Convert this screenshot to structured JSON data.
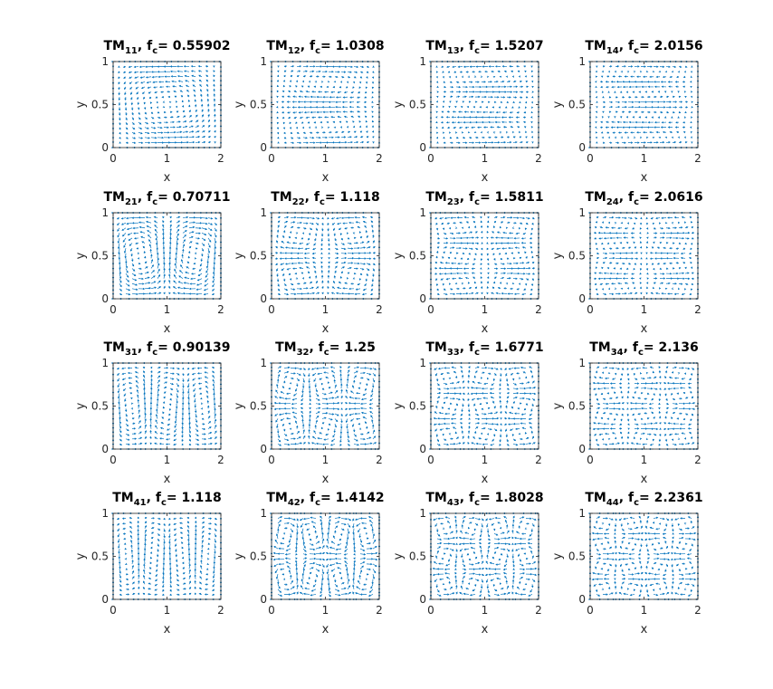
{
  "chart_data": [
    {
      "type": "quiver",
      "title": {
        "mode": "TM",
        "mode_sub": "11",
        "f": ", f",
        "f_sub": "c",
        "fc": "= 0.55902"
      },
      "xlabel": "x",
      "ylabel": "y",
      "xlim": [
        0,
        2
      ],
      "ylim": [
        0,
        1
      ],
      "xticks": [
        0,
        1,
        2
      ],
      "yticks": [
        0,
        0.5,
        1
      ],
      "color": "#0072bd"
    },
    {
      "type": "quiver",
      "title": {
        "mode": "TM",
        "mode_sub": "12",
        "f": ", f",
        "f_sub": "c",
        "fc": "= 1.0308"
      },
      "xlabel": "x",
      "ylabel": "y",
      "xlim": [
        0,
        2
      ],
      "ylim": [
        0,
        1
      ],
      "xticks": [
        0,
        1,
        2
      ],
      "yticks": [
        0,
        0.5,
        1
      ],
      "color": "#0072bd"
    },
    {
      "type": "quiver",
      "title": {
        "mode": "TM",
        "mode_sub": "13",
        "f": ", f",
        "f_sub": "c",
        "fc": "= 1.5207"
      },
      "xlabel": "x",
      "ylabel": "y",
      "xlim": [
        0,
        2
      ],
      "ylim": [
        0,
        1
      ],
      "xticks": [
        0,
        1,
        2
      ],
      "yticks": [
        0,
        0.5,
        1
      ],
      "color": "#0072bd"
    },
    {
      "type": "quiver",
      "title": {
        "mode": "TM",
        "mode_sub": "14",
        "f": ", f",
        "f_sub": "c",
        "fc": "= 2.0156"
      },
      "xlabel": "x",
      "ylabel": "y",
      "xlim": [
        0,
        2
      ],
      "ylim": [
        0,
        1
      ],
      "xticks": [
        0,
        1,
        2
      ],
      "yticks": [
        0,
        0.5,
        1
      ],
      "color": "#0072bd"
    },
    {
      "type": "quiver",
      "title": {
        "mode": "TM",
        "mode_sub": "21",
        "f": ", f",
        "f_sub": "c",
        "fc": "= 0.70711"
      },
      "xlabel": "x",
      "ylabel": "y",
      "xlim": [
        0,
        2
      ],
      "ylim": [
        0,
        1
      ],
      "xticks": [
        0,
        1,
        2
      ],
      "yticks": [
        0,
        0.5,
        1
      ],
      "color": "#0072bd"
    },
    {
      "type": "quiver",
      "title": {
        "mode": "TM",
        "mode_sub": "22",
        "f": ", f",
        "f_sub": "c",
        "fc": "= 1.118"
      },
      "xlabel": "x",
      "ylabel": "y",
      "xlim": [
        0,
        2
      ],
      "ylim": [
        0,
        1
      ],
      "xticks": [
        0,
        1,
        2
      ],
      "yticks": [
        0,
        0.5,
        1
      ],
      "color": "#0072bd"
    },
    {
      "type": "quiver",
      "title": {
        "mode": "TM",
        "mode_sub": "23",
        "f": ", f",
        "f_sub": "c",
        "fc": "= 1.5811"
      },
      "xlabel": "x",
      "ylabel": "y",
      "xlim": [
        0,
        2
      ],
      "ylim": [
        0,
        1
      ],
      "xticks": [
        0,
        1,
        2
      ],
      "yticks": [
        0,
        0.5,
        1
      ],
      "color": "#0072bd"
    },
    {
      "type": "quiver",
      "title": {
        "mode": "TM",
        "mode_sub": "24",
        "f": ", f",
        "f_sub": "c",
        "fc": "= 2.0616"
      },
      "xlabel": "x",
      "ylabel": "y",
      "xlim": [
        0,
        2
      ],
      "ylim": [
        0,
        1
      ],
      "xticks": [
        0,
        1,
        2
      ],
      "yticks": [
        0,
        0.5,
        1
      ],
      "color": "#0072bd"
    },
    {
      "type": "quiver",
      "title": {
        "mode": "TM",
        "mode_sub": "31",
        "f": ", f",
        "f_sub": "c",
        "fc": "= 0.90139"
      },
      "xlabel": "x",
      "ylabel": "y",
      "xlim": [
        0,
        2
      ],
      "ylim": [
        0,
        1
      ],
      "xticks": [
        0,
        1,
        2
      ],
      "yticks": [
        0,
        0.5,
        1
      ],
      "color": "#0072bd"
    },
    {
      "type": "quiver",
      "title": {
        "mode": "TM",
        "mode_sub": "32",
        "f": ", f",
        "f_sub": "c",
        "fc": "= 1.25"
      },
      "xlabel": "x",
      "ylabel": "y",
      "xlim": [
        0,
        2
      ],
      "ylim": [
        0,
        1
      ],
      "xticks": [
        0,
        1,
        2
      ],
      "yticks": [
        0,
        0.5,
        1
      ],
      "color": "#0072bd"
    },
    {
      "type": "quiver",
      "title": {
        "mode": "TM",
        "mode_sub": "33",
        "f": ", f",
        "f_sub": "c",
        "fc": "= 1.6771"
      },
      "xlabel": "x",
      "ylabel": "y",
      "xlim": [
        0,
        2
      ],
      "ylim": [
        0,
        1
      ],
      "xticks": [
        0,
        1,
        2
      ],
      "yticks": [
        0,
        0.5,
        1
      ],
      "color": "#0072bd"
    },
    {
      "type": "quiver",
      "title": {
        "mode": "TM",
        "mode_sub": "34",
        "f": ", f",
        "f_sub": "c",
        "fc": "= 2.136"
      },
      "xlabel": "x",
      "ylabel": "y",
      "xlim": [
        0,
        2
      ],
      "ylim": [
        0,
        1
      ],
      "xticks": [
        0,
        1,
        2
      ],
      "yticks": [
        0,
        0.5,
        1
      ],
      "color": "#0072bd"
    },
    {
      "type": "quiver",
      "title": {
        "mode": "TM",
        "mode_sub": "41",
        "f": ", f",
        "f_sub": "c",
        "fc": "= 1.118"
      },
      "xlabel": "x",
      "ylabel": "y",
      "xlim": [
        0,
        2
      ],
      "ylim": [
        0,
        1
      ],
      "xticks": [
        0,
        1,
        2
      ],
      "yticks": [
        0,
        0.5,
        1
      ],
      "color": "#0072bd"
    },
    {
      "type": "quiver",
      "title": {
        "mode": "TM",
        "mode_sub": "42",
        "f": ", f",
        "f_sub": "c",
        "fc": "= 1.4142"
      },
      "xlabel": "x",
      "ylabel": "y",
      "xlim": [
        0,
        2
      ],
      "ylim": [
        0,
        1
      ],
      "xticks": [
        0,
        1,
        2
      ],
      "yticks": [
        0,
        0.5,
        1
      ],
      "color": "#0072bd"
    },
    {
      "type": "quiver",
      "title": {
        "mode": "TM",
        "mode_sub": "43",
        "f": ", f",
        "f_sub": "c",
        "fc": "= 1.8028"
      },
      "xlabel": "x",
      "ylabel": "y",
      "xlim": [
        0,
        2
      ],
      "ylim": [
        0,
        1
      ],
      "xticks": [
        0,
        1,
        2
      ],
      "yticks": [
        0,
        0.5,
        1
      ],
      "color": "#0072bd"
    },
    {
      "type": "quiver",
      "title": {
        "mode": "TM",
        "mode_sub": "44",
        "f": ", f",
        "f_sub": "c",
        "fc": "= 2.2361"
      },
      "xlabel": "x",
      "ylabel": "y",
      "xlim": [
        0,
        2
      ],
      "ylim": [
        0,
        1
      ],
      "xticks": [
        0,
        1,
        2
      ],
      "yticks": [
        0,
        0.5,
        1
      ],
      "color": "#0072bd"
    }
  ]
}
